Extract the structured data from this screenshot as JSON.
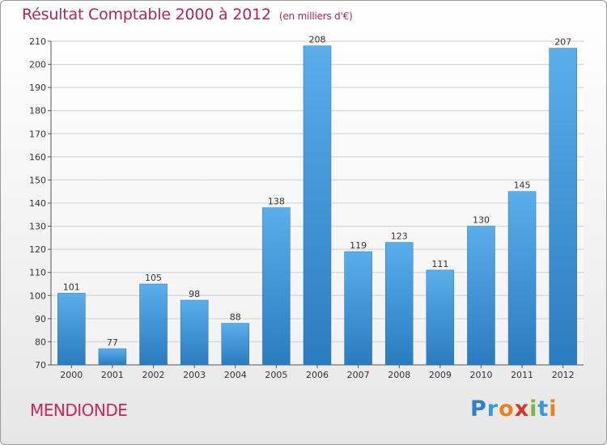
{
  "title": "Résultat Comptable 2000 à 2012",
  "unit_note": "(en milliers d'€)",
  "commune": "MENDIONDE",
  "logo_letters": [
    {
      "ch": "P",
      "color": "#2f7fc8"
    },
    {
      "ch": "r",
      "color": "#3a9ad8"
    },
    {
      "ch": "o",
      "color": "#e8821e"
    },
    {
      "ch": "x",
      "color": "#d8342a"
    },
    {
      "ch": "i",
      "color": "#7ab73a"
    },
    {
      "ch": "t",
      "color": "#3a9ad8"
    },
    {
      "ch": "i",
      "color": "#e8821e"
    }
  ],
  "colors": {
    "bar_top": "#5aaeea",
    "bar_bottom": "#2a7cc0",
    "title": "#b0245a"
  },
  "chart_data": {
    "type": "bar",
    "title": "Résultat Comptable 2000 à 2012",
    "xlabel": "",
    "ylabel": "",
    "categories": [
      "2000",
      "2001",
      "2002",
      "2003",
      "2004",
      "2005",
      "2006",
      "2007",
      "2008",
      "2009",
      "2010",
      "2011",
      "2012"
    ],
    "values": [
      101,
      77,
      105,
      98,
      88,
      138,
      208,
      119,
      123,
      111,
      130,
      145,
      207
    ],
    "ylim": [
      70,
      210
    ],
    "yticks": [
      70,
      80,
      90,
      100,
      110,
      120,
      130,
      140,
      150,
      160,
      170,
      180,
      190,
      200,
      210
    ],
    "grid": true
  }
}
